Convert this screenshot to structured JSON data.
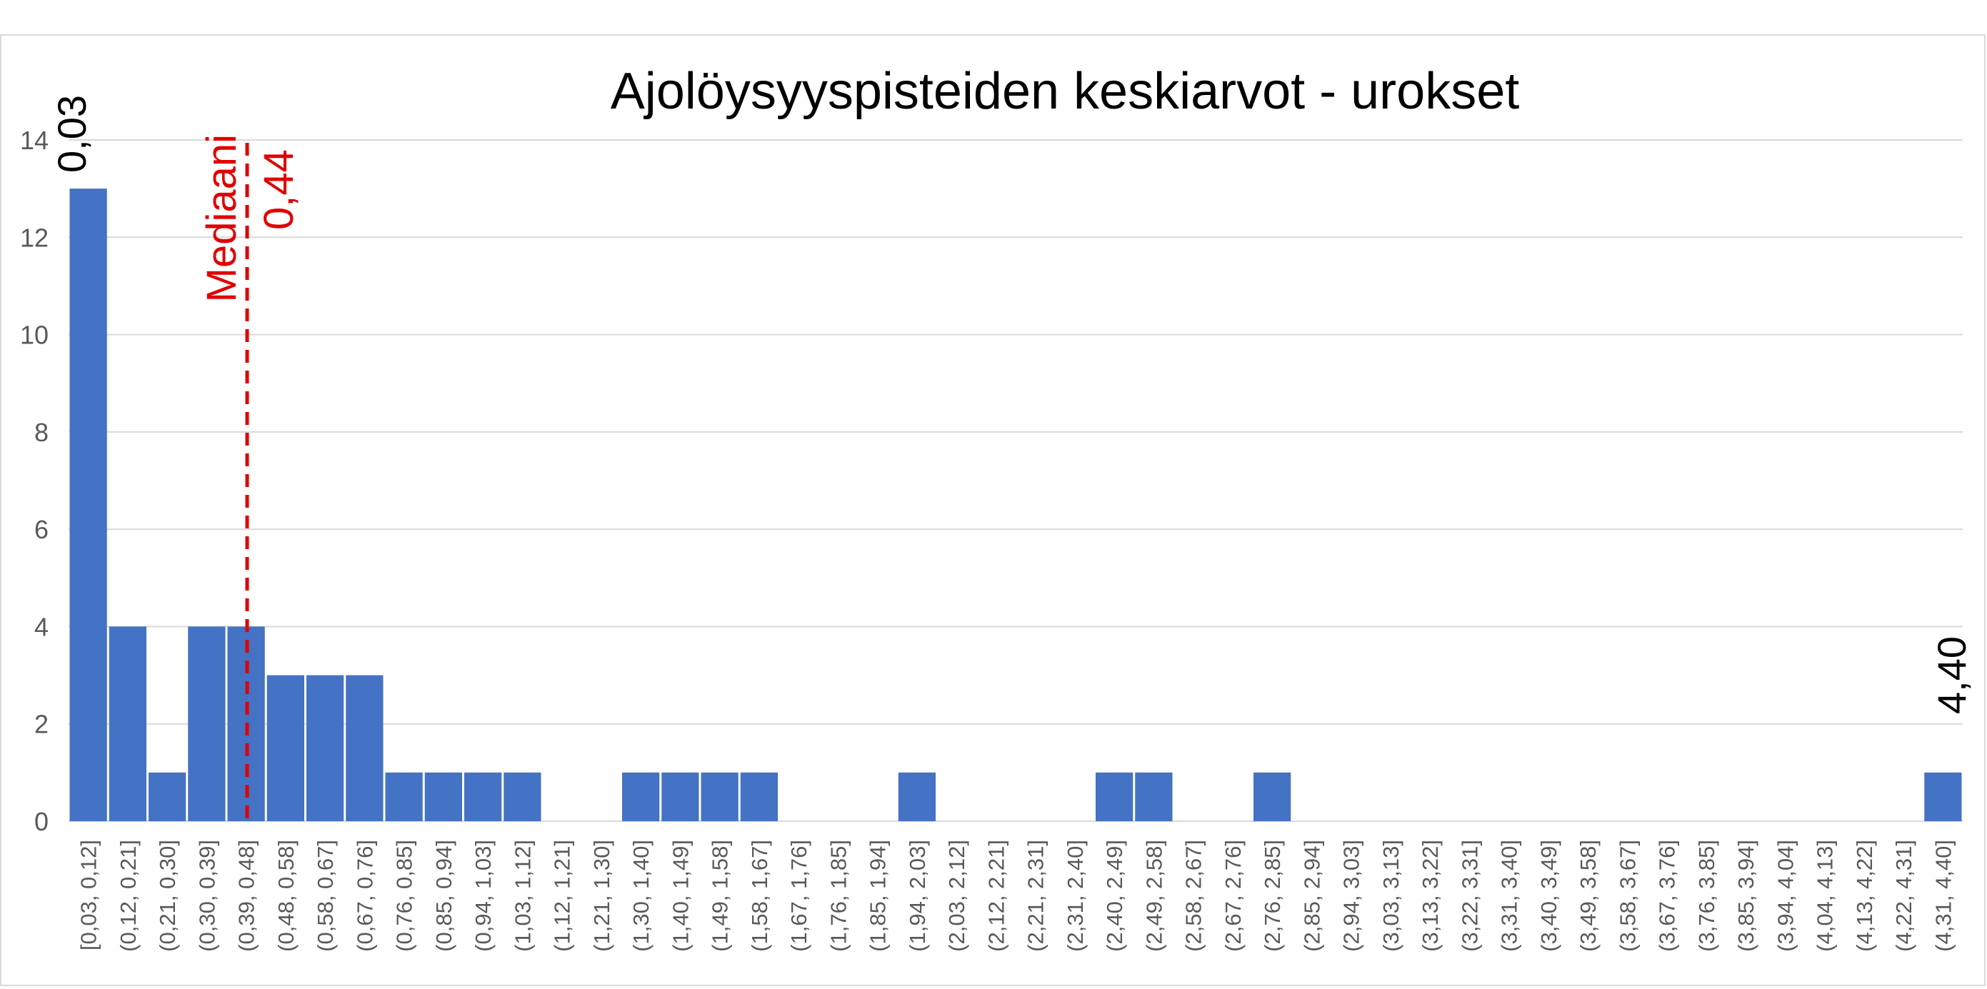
{
  "chart_data": {
    "type": "bar",
    "title": "Ajolöysyyspisteiden keskiarvot - urokset",
    "xlabel": "",
    "ylabel": "",
    "ylim": [
      0,
      14
    ],
    "yticks": [
      "0",
      "2",
      "4",
      "6",
      "8",
      "10",
      "12",
      "14"
    ],
    "grid": true,
    "legend": "none",
    "categories": [
      "[0,03, 0,12]",
      "(0,12, 0,21]",
      "(0,21, 0,30]",
      "(0,30, 0,39]",
      "(0,39, 0,48]",
      "(0,48, 0,58]",
      "(0,58, 0,67]",
      "(0,67, 0,76]",
      "(0,76, 0,85]",
      "(0,85, 0,94]",
      "(0,94, 1,03]",
      "(1,03, 1,12]",
      "(1,12, 1,21]",
      "(1,21, 1,30]",
      "(1,30, 1,40]",
      "(1,40, 1,49]",
      "(1,49, 1,58]",
      "(1,58, 1,67]",
      "(1,67, 1,76]",
      "(1,76, 1,85]",
      "(1,85, 1,94]",
      "(1,94, 2,03]",
      "(2,03, 2,12]",
      "(2,12, 2,21]",
      "(2,21, 2,31]",
      "(2,31, 2,40]",
      "(2,40, 2,49]",
      "(2,49, 2,58]",
      "(2,58, 2,67]",
      "(2,67, 2,76]",
      "(2,76, 2,85]",
      "(2,85, 2,94]",
      "(2,94, 3,03]",
      "(3,03, 3,13]",
      "(3,13, 3,22]",
      "(3,22, 3,31]",
      "(3,31, 3,40]",
      "(3,40, 3,49]",
      "(3,49, 3,58]",
      "(3,58, 3,67]",
      "(3,67, 3,76]",
      "(3,76, 3,85]",
      "(3,85, 3,94]",
      "(3,94, 4,04]",
      "(4,04, 4,13]",
      "(4,13, 4,22]",
      "(4,22, 4,31]",
      "(4,31, 4,40]"
    ],
    "values": [
      13,
      4,
      1,
      4,
      4,
      3,
      3,
      3,
      1,
      1,
      1,
      1,
      0,
      0,
      1,
      1,
      1,
      1,
      0,
      0,
      0,
      1,
      0,
      0,
      0,
      0,
      1,
      1,
      0,
      0,
      1,
      0,
      0,
      0,
      0,
      0,
      0,
      0,
      0,
      0,
      0,
      0,
      0,
      0,
      0,
      0,
      0,
      1
    ],
    "min_label": "0,03",
    "max_label": "4,40",
    "median": {
      "label": "Mediaani",
      "value_label": "0,44",
      "x": 0.44
    },
    "colors": {
      "bar": "#4472c4",
      "median_line": "#e00000",
      "grid": "#d9d9d9"
    }
  }
}
